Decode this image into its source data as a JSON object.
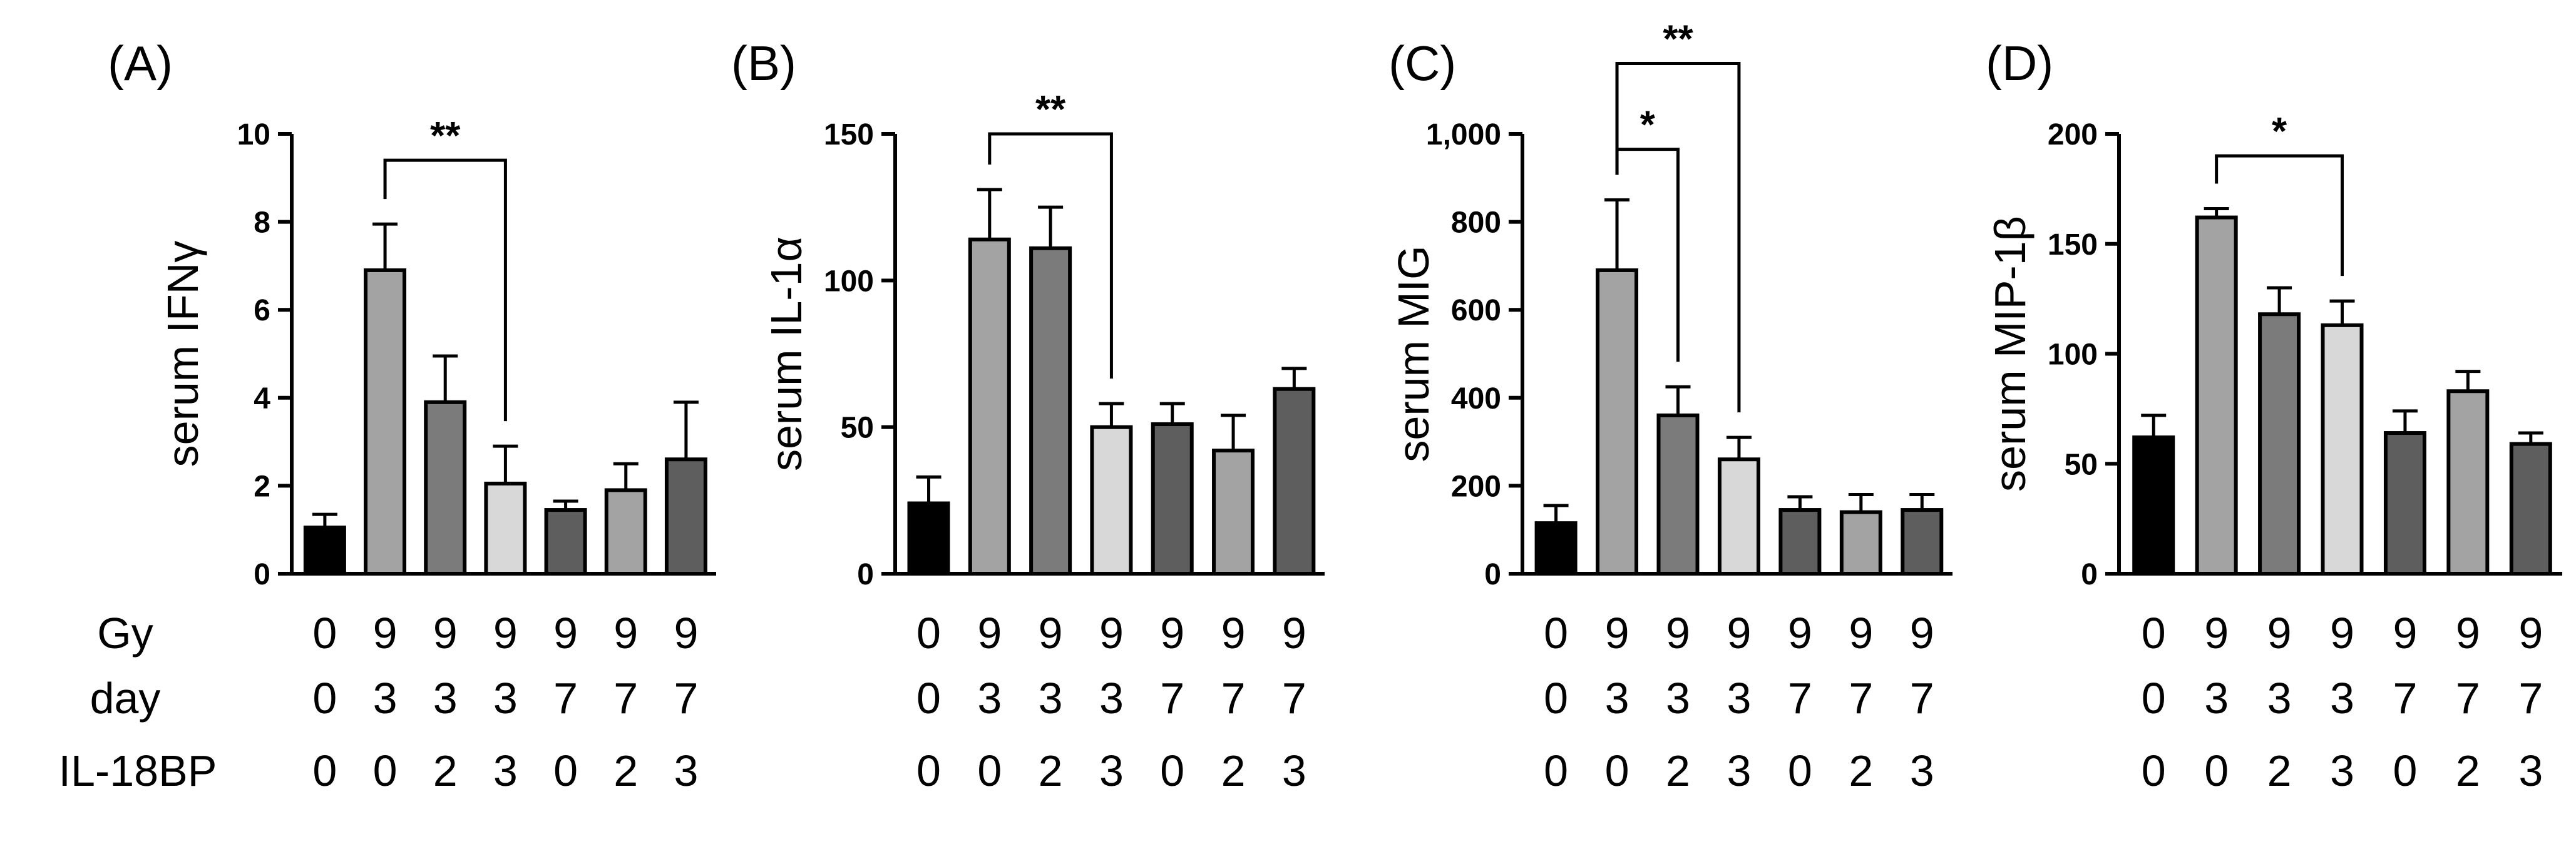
{
  "row_labels": [
    "Gy",
    "day",
    "IL-18BP"
  ],
  "groups": {
    "Gy": [
      "0",
      "9",
      "9",
      "9",
      "9",
      "9",
      "9"
    ],
    "day": [
      "0",
      "3",
      "3",
      "3",
      "7",
      "7",
      "7"
    ],
    "IL-18BP": [
      "0",
      "0",
      "2",
      "3",
      "0",
      "2",
      "3"
    ]
  },
  "bar_fills": [
    "#000000",
    "#a3a3a3",
    "#7b7b7b",
    "#d8d8d8",
    "#5e5e5e",
    "#a3a3a3",
    "#5e5e5e"
  ],
  "chart_data": [
    {
      "type": "bar",
      "panel_label": "(A)",
      "title": "",
      "xlabel": "",
      "ylabel": "serum IFNγ",
      "ylim": [
        0,
        10
      ],
      "yticks": [
        0,
        2,
        4,
        6,
        8,
        10
      ],
      "ytick_labels": [
        "0",
        "2",
        "4",
        "6",
        "8",
        "10"
      ],
      "values": [
        1.05,
        6.9,
        3.9,
        2.05,
        1.45,
        1.9,
        2.6
      ],
      "errors": [
        0.3,
        1.05,
        1.05,
        0.85,
        0.2,
        0.6,
        1.3
      ],
      "significance": [
        {
          "from": 1,
          "to": 3,
          "label": "**",
          "level": 9.4
        }
      ]
    },
    {
      "type": "bar",
      "panel_label": "(B)",
      "title": "",
      "xlabel": "",
      "ylabel": "serum IL-1α",
      "ylim": [
        0,
        150
      ],
      "yticks": [
        0,
        50,
        100,
        150
      ],
      "ytick_labels": [
        "0",
        "50",
        "100",
        "150"
      ],
      "values": [
        24,
        114,
        111,
        50,
        51,
        42,
        63
      ],
      "errors": [
        9,
        17,
        14,
        8,
        7,
        12,
        7
      ],
      "significance": [
        {
          "from": 1,
          "to": 3,
          "label": "**",
          "level": 150
        }
      ]
    },
    {
      "type": "bar",
      "panel_label": "(C)",
      "title": "",
      "xlabel": "",
      "ylabel": "serum MIG",
      "ylim": [
        0,
        1000
      ],
      "yticks": [
        0,
        200,
        400,
        600,
        800,
        1000
      ],
      "ytick_labels": [
        "0",
        "200",
        "400",
        "600",
        "800",
        "1,000"
      ],
      "values": [
        115,
        690,
        360,
        260,
        145,
        140,
        145
      ],
      "errors": [
        40,
        160,
        65,
        50,
        30,
        40,
        35
      ],
      "significance": [
        {
          "from": 1,
          "to": 2,
          "label": "*",
          "level": 965
        },
        {
          "from": 1,
          "to": 3,
          "label": "**",
          "level": 1160
        }
      ]
    },
    {
      "type": "bar",
      "panel_label": "(D)",
      "title": "",
      "xlabel": "",
      "ylabel": "serum MIP-1β",
      "ylim": [
        0,
        200
      ],
      "yticks": [
        0,
        50,
        100,
        150,
        200
      ],
      "ytick_labels": [
        "0",
        "50",
        "100",
        "150",
        "200"
      ],
      "values": [
        62,
        162,
        118,
        113,
        64,
        83,
        59
      ],
      "errors": [
        10,
        4,
        12,
        11,
        10,
        9,
        5
      ],
      "significance": [
        {
          "from": 1,
          "to": 3,
          "label": "*",
          "level": 190
        }
      ]
    }
  ]
}
